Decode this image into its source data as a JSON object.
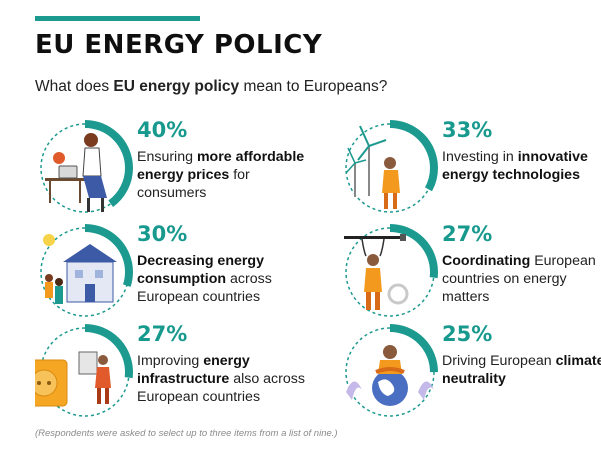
{
  "header": {
    "title": "EU ENERGY POLICY",
    "subtitle_pre": "What does ",
    "subtitle_bold": "EU energy policy",
    "subtitle_post": " mean to Europeans?"
  },
  "colors": {
    "accent": "#1d9a8f",
    "text": "#1a1a1a",
    "muted": "#8a8a8a",
    "orange": "#f39a1e"
  },
  "items": [
    {
      "percent": "40%",
      "fraction": 0.4,
      "icon": "person-at-laptop-icon",
      "parts": [
        [
          "Ensuring ",
          false
        ],
        [
          "more affordable energy prices",
          true
        ],
        [
          " for consumers",
          false
        ]
      ]
    },
    {
      "percent": "33%",
      "fraction": 0.33,
      "icon": "wind-turbine-worker-icon",
      "parts": [
        [
          "Investing in ",
          false
        ],
        [
          "innovative energy technologies",
          true
        ]
      ]
    },
    {
      "percent": "30%",
      "fraction": 0.3,
      "icon": "house-family-icon",
      "parts": [
        [
          "Decreasing energy consumption",
          true
        ],
        [
          " across European countries",
          false
        ]
      ]
    },
    {
      "percent": "27%",
      "fraction": 0.27,
      "icon": "worker-with-cable-icon",
      "parts": [
        [
          "Coordinating",
          true
        ],
        [
          " European countries on energy matters",
          false
        ]
      ]
    },
    {
      "percent": "27%",
      "fraction": 0.27,
      "icon": "power-socket-electrician-icon",
      "parts": [
        [
          "Improving ",
          false
        ],
        [
          "energy infrastructure",
          true
        ],
        [
          " also across European countries",
          false
        ]
      ]
    },
    {
      "percent": "25%",
      "fraction": 0.25,
      "icon": "globe-hug-icon",
      "parts": [
        [
          "Driving European ",
          false
        ],
        [
          "climate neutrality",
          true
        ]
      ]
    }
  ],
  "footnote": "(Respondents were asked to select up to three items from a list of nine.)"
}
